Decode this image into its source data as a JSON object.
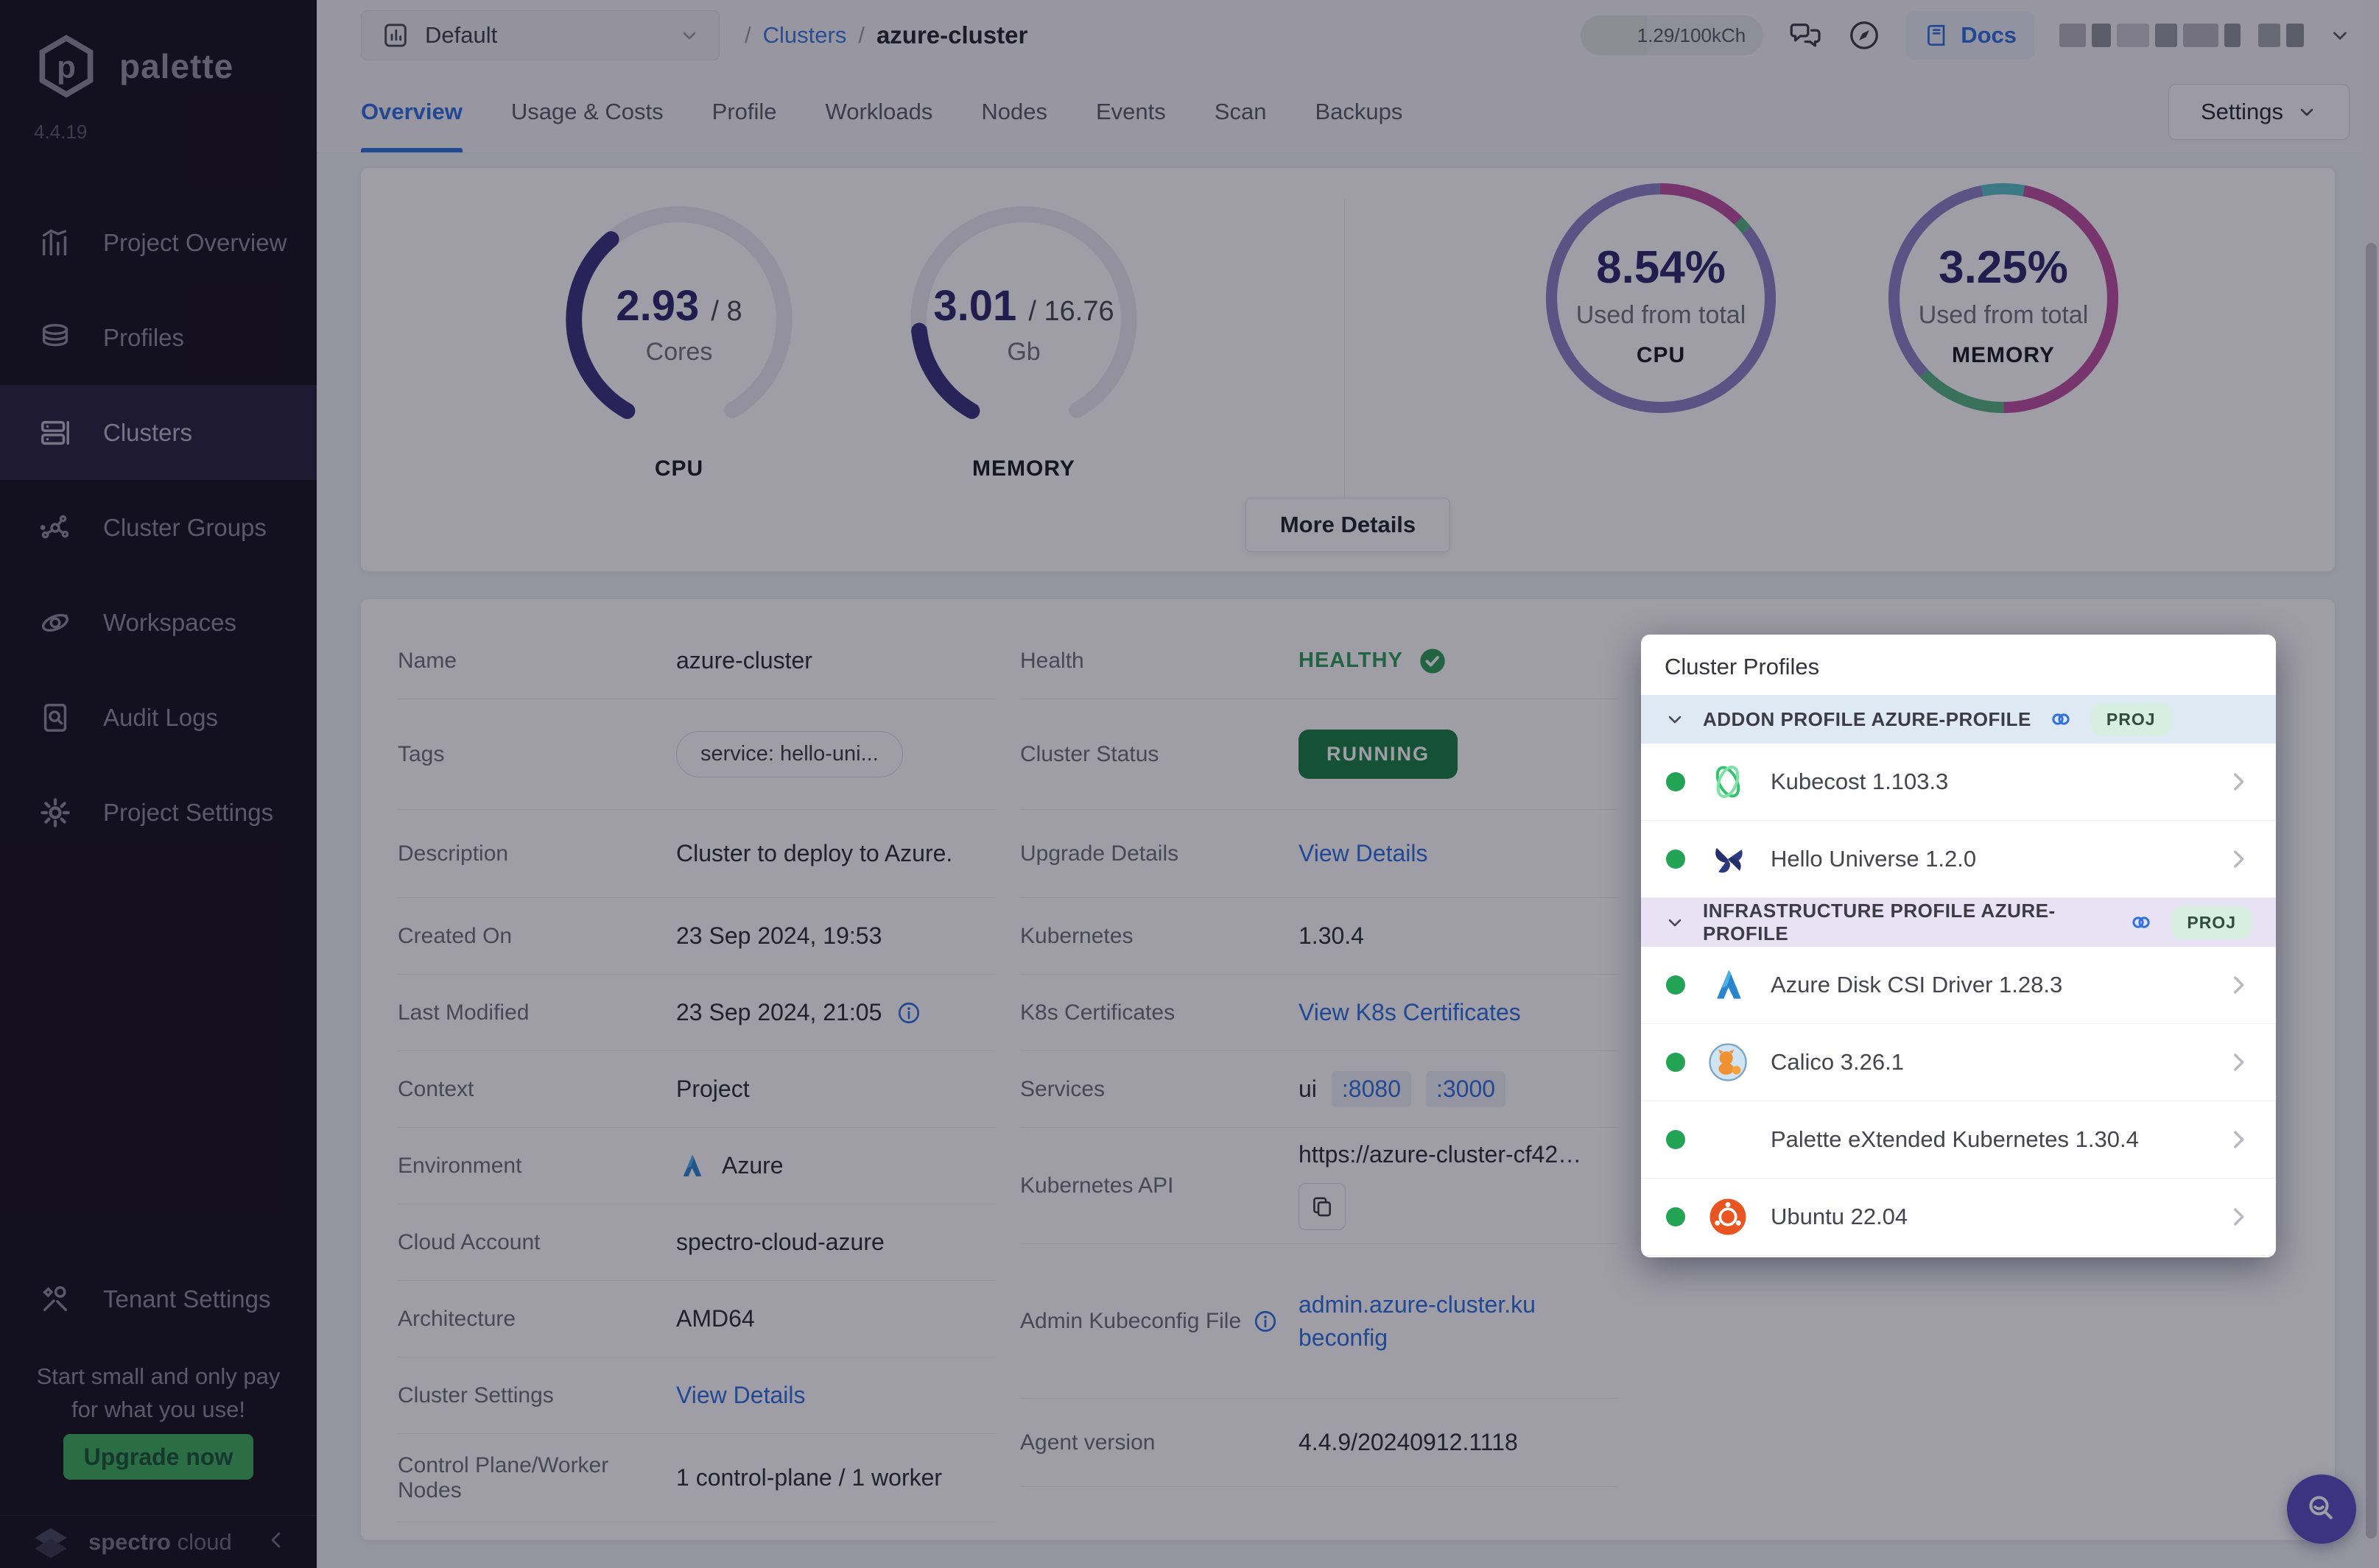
{
  "theme": {
    "accent_blue": "#2f6fe0",
    "healthy_green": "#2f9e57",
    "running_green": "#1a7f41",
    "upgrade_green": "#3fae5e",
    "gauge_indigo": "#3a3480",
    "number_indigo": "#2d2a6e",
    "segment_purple": "#8d83c5",
    "segment_magenta": "#bf4f9e",
    "segment_green": "#55b586",
    "segment_teal": "#59c3c8",
    "fab_indigo": "#5b4ec2"
  },
  "sidebar": {
    "logo_text": "palette",
    "version": "4.4.19",
    "items": [
      "Project Overview",
      "Profiles",
      "Clusters",
      "Cluster Groups",
      "Workspaces",
      "Audit Logs",
      "Project Settings"
    ],
    "tenant": "Tenant Settings",
    "upsell": "Start small and only pay for what you use!",
    "upgrade_button": "Upgrade now",
    "brand_bold": "spectro",
    "brand_light": "cloud"
  },
  "topbar": {
    "project_selector": "Default",
    "breadcrumb_sep": "/",
    "breadcrumb_link": "Clusters",
    "breadcrumb_current": "azure-cluster",
    "usage_pill": "1.29/100kCh",
    "docs_label": "Docs"
  },
  "tabs": [
    "Overview",
    "Usage & Costs",
    "Profile",
    "Workloads",
    "Nodes",
    "Events",
    "Scan",
    "Backups"
  ],
  "settings_button": "Settings",
  "more_details_button": "More Details",
  "chart_data": [
    {
      "type": "gauge",
      "label": "CPU",
      "value": 2.93,
      "total": 8,
      "value_text": "2.93",
      "sep": "/",
      "total_text": "8",
      "unit": "Cores",
      "color": "#3a3480",
      "track": "#e9e9f0"
    },
    {
      "type": "gauge",
      "label": "MEMORY",
      "value": 3.01,
      "total": 16.76,
      "value_text": "3.01",
      "sep": "/",
      "total_text": "16.76",
      "unit": "Gb",
      "color": "#3a3480",
      "track": "#e9e9f0"
    },
    {
      "type": "donut",
      "label": "CPU",
      "center_value": "8.54%",
      "center_label": "Used from total",
      "segments": [
        {
          "name": "magenta",
          "color": "#bf4f9e",
          "start": 0,
          "value": 12.5
        },
        {
          "name": "green",
          "color": "#55b586",
          "start": 12.5,
          "value": 1.8
        },
        {
          "name": "purple",
          "color": "#8d83c5",
          "start": 14.3,
          "value": 85.7
        }
      ]
    },
    {
      "type": "donut",
      "label": "MEMORY",
      "center_value": "3.25%",
      "center_label": "Used from total",
      "segments": [
        {
          "name": "teal",
          "color": "#59c3c8",
          "start": 97,
          "value": 6
        },
        {
          "name": "magenta",
          "color": "#bf4f9e",
          "start": 3,
          "value": 47
        },
        {
          "name": "green",
          "color": "#55b586",
          "start": 50,
          "value": 13
        },
        {
          "name": "purple",
          "color": "#8d83c5",
          "start": 63,
          "value": 34
        }
      ]
    }
  ],
  "details": {
    "left": [
      {
        "label": "Name",
        "value": "azure-cluster"
      },
      {
        "label": "Tags",
        "value": "service: hello-uni..."
      },
      {
        "label": "Description",
        "value": "Cluster to deploy to Azure."
      },
      {
        "label": "Created On",
        "value": "23 Sep 2024, 19:53"
      },
      {
        "label": "Last Modified",
        "value": "23 Sep 2024, 21:05"
      },
      {
        "label": "Context",
        "value": "Project"
      },
      {
        "label": "Environment",
        "value": "Azure"
      },
      {
        "label": "Cloud Account",
        "value": "spectro-cloud-azure"
      },
      {
        "label": "Architecture",
        "value": "AMD64"
      },
      {
        "label": "Cluster Settings",
        "value": "View Details"
      },
      {
        "label": "Control Plane/Worker Nodes",
        "value": "1 control-plane / 1 worker"
      }
    ],
    "right": [
      {
        "label": "Health",
        "value": "HEALTHY"
      },
      {
        "label": "Cluster Status",
        "value": "RUNNING"
      },
      {
        "label": "Upgrade Details",
        "value": "View Details"
      },
      {
        "label": "Kubernetes",
        "value": "1.30.4"
      },
      {
        "label": "K8s Certificates",
        "value": "View K8s Certificates"
      },
      {
        "label": "Services",
        "value": "ui",
        "ports": [
          ":8080",
          ":3000"
        ]
      },
      {
        "label": "Kubernetes API",
        "value": "https://azure-cluster-cf42…"
      },
      {
        "label": "Admin Kubeconfig File",
        "value": "admin.azure-cluster.kubeconfig"
      },
      {
        "label": "Agent version",
        "value": "4.4.9/20240912.1118"
      }
    ]
  },
  "profiles_panel": {
    "title": "Cluster Profiles",
    "sections": [
      {
        "header": "ADDON PROFILE AZURE-PROFILE",
        "badge": "PROJ",
        "items": [
          {
            "name": "Kubecost 1.103.3"
          },
          {
            "name": "Hello Universe 1.2.0"
          }
        ]
      },
      {
        "header": "INFRASTRUCTURE PROFILE AZURE-PROFILE",
        "badge": "PROJ",
        "items": [
          {
            "name": "Azure Disk CSI Driver 1.28.3"
          },
          {
            "name": "Calico 3.26.1"
          },
          {
            "name": "Palette eXtended Kubernetes 1.30.4"
          },
          {
            "name": "Ubuntu 22.04"
          }
        ]
      }
    ]
  }
}
